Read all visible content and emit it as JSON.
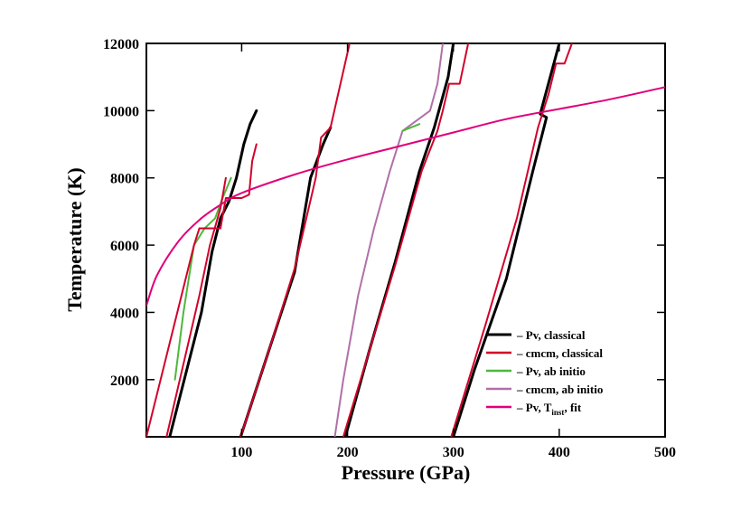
{
  "chart_data": {
    "type": "line",
    "xlabel": "Pressure (GPa)",
    "ylabel": "Temperature (K)",
    "xlim": [
      10,
      500
    ],
    "ylim": [
      300,
      12000
    ],
    "xticks": [
      100,
      200,
      300,
      400,
      500
    ],
    "yticks": [
      2000,
      4000,
      6000,
      8000,
      10000,
      12000
    ],
    "grid": false,
    "legend_position": "bottom-right",
    "series": [
      {
        "name": "Pv, classical",
        "legend_label": "– Pv, classical",
        "color": "#000000",
        "segments": [
          [
            [
              32,
              300
            ],
            [
              62,
              4000
            ],
            [
              72,
              5800
            ],
            [
              80,
              6800
            ],
            [
              88,
              7300
            ],
            [
              95,
              8000
            ],
            [
              102,
              9000
            ],
            [
              108,
              9600
            ],
            [
              114,
              10000
            ]
          ],
          [
            [
              99,
              300
            ],
            [
              125,
              2800
            ],
            [
              150,
              5200
            ],
            [
              165,
              8000
            ],
            [
              177,
              9000
            ],
            [
              184,
              9500
            ]
          ],
          [
            [
              198,
              300
            ],
            [
              220,
              2800
            ],
            [
              245,
              5500
            ],
            [
              268,
              8200
            ],
            [
              282,
              9500
            ],
            [
              295,
              11000
            ],
            [
              300,
              12000
            ]
          ],
          [
            [
              300,
              300
            ],
            [
              320,
              2300
            ],
            [
              350,
              5000
            ],
            [
              375,
              8200
            ],
            [
              388,
              9800
            ],
            [
              382,
              9900
            ],
            [
              400,
              12000
            ]
          ]
        ]
      },
      {
        "name": "cmcm, classical",
        "legend_label": "– cmcm, classical",
        "color": "#d3002a",
        "segments": [
          [
            [
              10,
              300
            ],
            [
              55,
              6000
            ],
            [
              60,
              6500
            ],
            [
              80,
              6500
            ],
            [
              85,
              7400
            ],
            [
              100,
              7400
            ],
            [
              107,
              7500
            ],
            [
              110,
              8500
            ],
            [
              114,
              9000
            ]
          ],
          [
            [
              29,
              300
            ],
            [
              60,
              4500
            ],
            [
              70,
              6000
            ],
            [
              80,
              7100
            ],
            [
              85,
              8000
            ]
          ],
          [
            [
              99,
              300
            ],
            [
              125,
              2800
            ],
            [
              150,
              5300
            ],
            [
              170,
              8000
            ],
            [
              175,
              9200
            ],
            [
              181,
              9400
            ],
            [
              184,
              9500
            ],
            [
              202,
              12000
            ]
          ],
          [
            [
              196,
              300
            ],
            [
              220,
              2800
            ],
            [
              245,
              5400
            ],
            [
              270,
              8200
            ],
            [
              285,
              9400
            ],
            [
              290,
              10000
            ],
            [
              296,
              10800
            ],
            [
              306,
              10800
            ],
            [
              314,
              12000
            ]
          ],
          [
            [
              298,
              300
            ],
            [
              330,
              3600
            ],
            [
              360,
              6800
            ],
            [
              380,
              9500
            ],
            [
              390,
              10500
            ],
            [
              397,
              11400
            ],
            [
              405,
              11400
            ],
            [
              412,
              12000
            ]
          ]
        ]
      },
      {
        "name": "Pv, ab initio",
        "legend_label": "– Pv, ab initio",
        "color": "#4db83a",
        "segments": [
          [
            [
              37,
              2000
            ],
            [
              45,
              4000
            ],
            [
              55,
              6000
            ],
            [
              65,
              6500
            ],
            [
              75,
              6800
            ],
            [
              82,
              7400
            ],
            [
              90,
              8000
            ]
          ],
          [
            [
              252,
              9400
            ],
            [
              268,
              9600
            ]
          ]
        ]
      },
      {
        "name": "cmcm, ab initio",
        "legend_label": "– cmcm, ab initio",
        "color": "#b070a8",
        "segments": [
          [
            [
              188,
              300
            ],
            [
              196,
              2000
            ],
            [
              210,
              4500
            ],
            [
              225,
              6500
            ],
            [
              240,
              8200
            ],
            [
              252,
              9400
            ],
            [
              278,
              10000
            ],
            [
              285,
              10800
            ],
            [
              290,
              12000
            ]
          ]
        ]
      },
      {
        "name": "Pv, T_inst, fit",
        "legend_label": "– Pv, T",
        "legend_label_sub": "inst",
        "legend_label_suffix": ", fit",
        "color": "#e0007a",
        "curve": [
          [
            10,
            4200
          ],
          [
            20,
            5100
          ],
          [
            40,
            6100
          ],
          [
            60,
            6750
          ],
          [
            80,
            7200
          ],
          [
            100,
            7550
          ],
          [
            150,
            8100
          ],
          [
            200,
            8550
          ],
          [
            250,
            8950
          ],
          [
            300,
            9350
          ],
          [
            350,
            9750
          ],
          [
            400,
            10050
          ],
          [
            450,
            10350
          ],
          [
            500,
            10700
          ]
        ]
      }
    ]
  }
}
